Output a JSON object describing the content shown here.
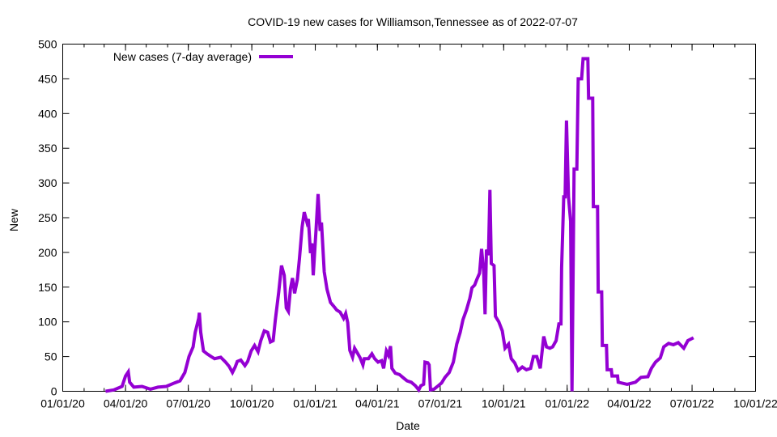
{
  "chart_data": {
    "type": "line",
    "title": "COVID-19 new cases for Williamson,Tennessee as of 2022-07-07",
    "xlabel": "Date",
    "ylabel": "New",
    "ylim": [
      0,
      500
    ],
    "yticks": [
      0,
      50,
      100,
      150,
      200,
      250,
      300,
      350,
      400,
      450,
      500
    ],
    "x_unit": "days since 2020-01-01",
    "xlim": [
      0,
      1004
    ],
    "xtick_labels": [
      "01/01/20",
      "04/01/20",
      "07/01/20",
      "10/01/20",
      "01/01/21",
      "04/01/21",
      "07/01/21",
      "10/01/21",
      "01/01/22",
      "04/01/22",
      "07/01/22",
      "10/01/22"
    ],
    "xtick_days": [
      0,
      91,
      182,
      274,
      366,
      456,
      547,
      639,
      731,
      821,
      912,
      1004
    ],
    "legend": {
      "placement": "top-left",
      "label": "New cases (7-day average)"
    },
    "grid": false,
    "series": [
      {
        "name": "New cases (7-day average)",
        "color": "#9400d3",
        "points": [
          [
            62,
            0
          ],
          [
            74,
            2
          ],
          [
            86,
            7
          ],
          [
            91,
            22
          ],
          [
            95,
            28
          ],
          [
            97,
            13
          ],
          [
            103,
            6
          ],
          [
            115,
            7
          ],
          [
            127,
            3
          ],
          [
            138,
            6
          ],
          [
            150,
            7
          ],
          [
            162,
            12
          ],
          [
            170,
            15
          ],
          [
            177,
            27
          ],
          [
            183,
            50
          ],
          [
            189,
            64
          ],
          [
            192,
            85
          ],
          [
            197,
            105
          ],
          [
            198,
            113
          ],
          [
            200,
            85
          ],
          [
            204,
            58
          ],
          [
            209,
            54
          ],
          [
            215,
            50
          ],
          [
            220,
            47
          ],
          [
            229,
            49
          ],
          [
            236,
            42
          ],
          [
            241,
            36
          ],
          [
            246,
            27
          ],
          [
            250,
            35
          ],
          [
            253,
            43
          ],
          [
            258,
            45
          ],
          [
            264,
            37
          ],
          [
            268,
            43
          ],
          [
            273,
            58
          ],
          [
            278,
            66
          ],
          [
            283,
            57
          ],
          [
            287,
            73
          ],
          [
            292,
            87
          ],
          [
            297,
            85
          ],
          [
            301,
            71
          ],
          [
            305,
            73
          ],
          [
            308,
            102
          ],
          [
            313,
            143
          ],
          [
            317,
            181
          ],
          [
            321,
            167
          ],
          [
            324,
            120
          ],
          [
            327,
            115
          ],
          [
            330,
            148
          ],
          [
            333,
            163
          ],
          [
            336,
            141
          ],
          [
            340,
            161
          ],
          [
            343,
            190
          ],
          [
            347,
            237
          ],
          [
            350,
            258
          ],
          [
            354,
            243
          ],
          [
            356,
            248
          ],
          [
            359,
            199
          ],
          [
            361,
            213
          ],
          [
            363,
            167
          ],
          [
            367,
            231
          ],
          [
            370,
            284
          ],
          [
            373,
            231
          ],
          [
            375,
            243
          ],
          [
            379,
            172
          ],
          [
            383,
            147
          ],
          [
            388,
            128
          ],
          [
            393,
            122
          ],
          [
            397,
            117
          ],
          [
            402,
            114
          ],
          [
            407,
            105
          ],
          [
            410,
            112
          ],
          [
            413,
            99
          ],
          [
            416,
            59
          ],
          [
            420,
            49
          ],
          [
            423,
            62
          ],
          [
            427,
            55
          ],
          [
            431,
            48
          ],
          [
            435,
            38
          ],
          [
            437,
            47
          ],
          [
            443,
            47
          ],
          [
            448,
            54
          ],
          [
            452,
            47
          ],
          [
            457,
            42
          ],
          [
            462,
            44
          ],
          [
            465,
            33
          ],
          [
            469,
            58
          ],
          [
            472,
            52
          ],
          [
            475,
            65
          ],
          [
            477,
            33
          ],
          [
            482,
            26
          ],
          [
            488,
            24
          ],
          [
            494,
            19
          ],
          [
            499,
            15
          ],
          [
            505,
            13
          ],
          [
            511,
            8
          ],
          [
            516,
            2
          ],
          [
            519,
            8
          ],
          [
            523,
            10
          ],
          [
            525,
            42
          ],
          [
            529,
            41
          ],
          [
            531,
            38
          ],
          [
            533,
            2
          ],
          [
            538,
            3
          ],
          [
            543,
            7
          ],
          [
            549,
            12
          ],
          [
            554,
            20
          ],
          [
            560,
            27
          ],
          [
            566,
            42
          ],
          [
            571,
            68
          ],
          [
            576,
            85
          ],
          [
            580,
            103
          ],
          [
            585,
            117
          ],
          [
            590,
            134
          ],
          [
            593,
            149
          ],
          [
            597,
            153
          ],
          [
            600,
            161
          ],
          [
            604,
            170
          ],
          [
            607,
            205
          ],
          [
            610,
            172
          ],
          [
            612,
            111
          ],
          [
            614,
            204
          ],
          [
            617,
            196
          ],
          [
            619,
            290
          ],
          [
            621,
            184
          ],
          [
            625,
            181
          ],
          [
            627,
            108
          ],
          [
            632,
            100
          ],
          [
            637,
            87
          ],
          [
            641,
            62
          ],
          [
            646,
            68
          ],
          [
            650,
            47
          ],
          [
            655,
            41
          ],
          [
            660,
            30
          ],
          [
            666,
            35
          ],
          [
            672,
            31
          ],
          [
            678,
            33
          ],
          [
            682,
            50
          ],
          [
            687,
            50
          ],
          [
            692,
            33
          ],
          [
            697,
            79
          ],
          [
            701,
            64
          ],
          [
            706,
            62
          ],
          [
            710,
            64
          ],
          [
            715,
            73
          ],
          [
            719,
            97
          ],
          [
            722,
            97
          ],
          [
            723,
            178
          ],
          [
            726,
            280
          ],
          [
            728,
            280
          ],
          [
            730,
            390
          ],
          [
            733,
            280
          ],
          [
            736,
            245
          ],
          [
            738,
            0
          ],
          [
            741,
            320
          ],
          [
            745,
            320
          ],
          [
            747,
            450
          ],
          [
            752,
            450
          ],
          [
            754,
            479
          ],
          [
            761,
            479
          ],
          [
            762,
            422
          ],
          [
            768,
            422
          ],
          [
            769,
            266
          ],
          [
            775,
            266
          ],
          [
            776,
            143
          ],
          [
            781,
            143
          ],
          [
            782,
            66
          ],
          [
            788,
            66
          ],
          [
            789,
            31
          ],
          [
            795,
            31
          ],
          [
            796,
            22
          ],
          [
            804,
            22
          ],
          [
            805,
            13
          ],
          [
            818,
            10
          ],
          [
            830,
            13
          ],
          [
            838,
            20
          ],
          [
            848,
            21
          ],
          [
            853,
            33
          ],
          [
            859,
            42
          ],
          [
            866,
            48
          ],
          [
            871,
            64
          ],
          [
            878,
            69
          ],
          [
            885,
            67
          ],
          [
            892,
            70
          ],
          [
            900,
            62
          ],
          [
            906,
            73
          ],
          [
            914,
            77
          ]
        ]
      }
    ]
  }
}
